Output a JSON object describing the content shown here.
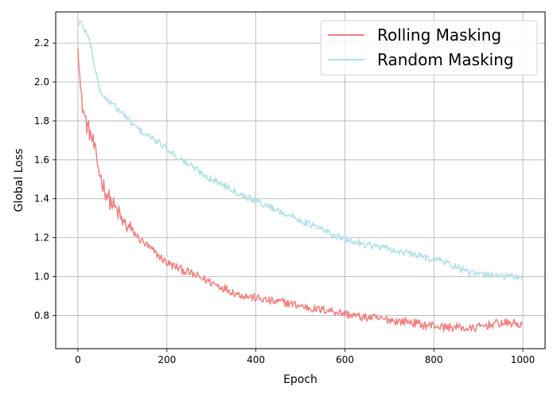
{
  "chart_data": {
    "type": "line",
    "title": "",
    "xlabel": "Epoch",
    "ylabel": "Global Loss",
    "xlim": [
      -50,
      1050
    ],
    "ylim": [
      0.63,
      2.36
    ],
    "x_ticks": [
      0,
      200,
      400,
      600,
      800,
      1000
    ],
    "y_ticks": [
      0.8,
      1.0,
      1.2,
      1.4,
      1.6,
      1.8,
      2.0,
      2.2
    ],
    "grid": true,
    "legend_position": "top-right",
    "series": [
      {
        "name": "Rolling Masking",
        "color": "#f08080",
        "x": [
          0,
          3,
          6,
          10,
          15,
          20,
          25,
          30,
          35,
          40,
          50,
          60,
          70,
          80,
          90,
          100,
          120,
          140,
          160,
          180,
          200,
          220,
          240,
          260,
          280,
          300,
          320,
          340,
          360,
          380,
          400,
          420,
          440,
          460,
          480,
          500,
          520,
          540,
          560,
          580,
          600,
          620,
          640,
          660,
          680,
          700,
          720,
          740,
          760,
          780,
          800,
          820,
          840,
          860,
          880,
          900,
          920,
          940,
          960,
          980,
          1000
        ],
        "y": [
          2.22,
          2.08,
          1.95,
          1.88,
          1.82,
          1.78,
          1.75,
          1.72,
          1.68,
          1.62,
          1.52,
          1.45,
          1.4,
          1.36,
          1.33,
          1.28,
          1.24,
          1.19,
          1.15,
          1.11,
          1.07,
          1.05,
          1.03,
          1.01,
          0.99,
          0.97,
          0.95,
          0.93,
          0.91,
          0.9,
          0.89,
          0.88,
          0.87,
          0.87,
          0.86,
          0.85,
          0.84,
          0.83,
          0.83,
          0.82,
          0.81,
          0.8,
          0.79,
          0.79,
          0.78,
          0.78,
          0.77,
          0.77,
          0.76,
          0.75,
          0.75,
          0.74,
          0.74,
          0.74,
          0.73,
          0.74,
          0.75,
          0.76,
          0.76,
          0.76,
          0.75
        ]
      },
      {
        "name": "Random Masking",
        "color": "#b0e0e6",
        "x": [
          0,
          5,
          10,
          20,
          30,
          40,
          50,
          60,
          70,
          80,
          90,
          100,
          120,
          140,
          160,
          180,
          200,
          220,
          240,
          260,
          280,
          300,
          320,
          340,
          360,
          380,
          400,
          420,
          440,
          460,
          480,
          500,
          520,
          540,
          560,
          580,
          600,
          620,
          640,
          660,
          680,
          700,
          720,
          740,
          760,
          780,
          800,
          820,
          840,
          860,
          880,
          900,
          920,
          940,
          960,
          980,
          1000
        ],
        "y": [
          2.3,
          2.31,
          2.29,
          2.25,
          2.18,
          2.05,
          1.95,
          1.92,
          1.9,
          1.88,
          1.86,
          1.84,
          1.79,
          1.75,
          1.72,
          1.69,
          1.66,
          1.62,
          1.59,
          1.56,
          1.53,
          1.5,
          1.48,
          1.46,
          1.43,
          1.41,
          1.39,
          1.37,
          1.35,
          1.33,
          1.31,
          1.29,
          1.27,
          1.25,
          1.23,
          1.21,
          1.19,
          1.18,
          1.17,
          1.16,
          1.15,
          1.14,
          1.13,
          1.12,
          1.11,
          1.1,
          1.09,
          1.08,
          1.06,
          1.04,
          1.02,
          1.01,
          1.01,
          1.01,
          1.0,
          1.0,
          1.0
        ]
      }
    ]
  }
}
